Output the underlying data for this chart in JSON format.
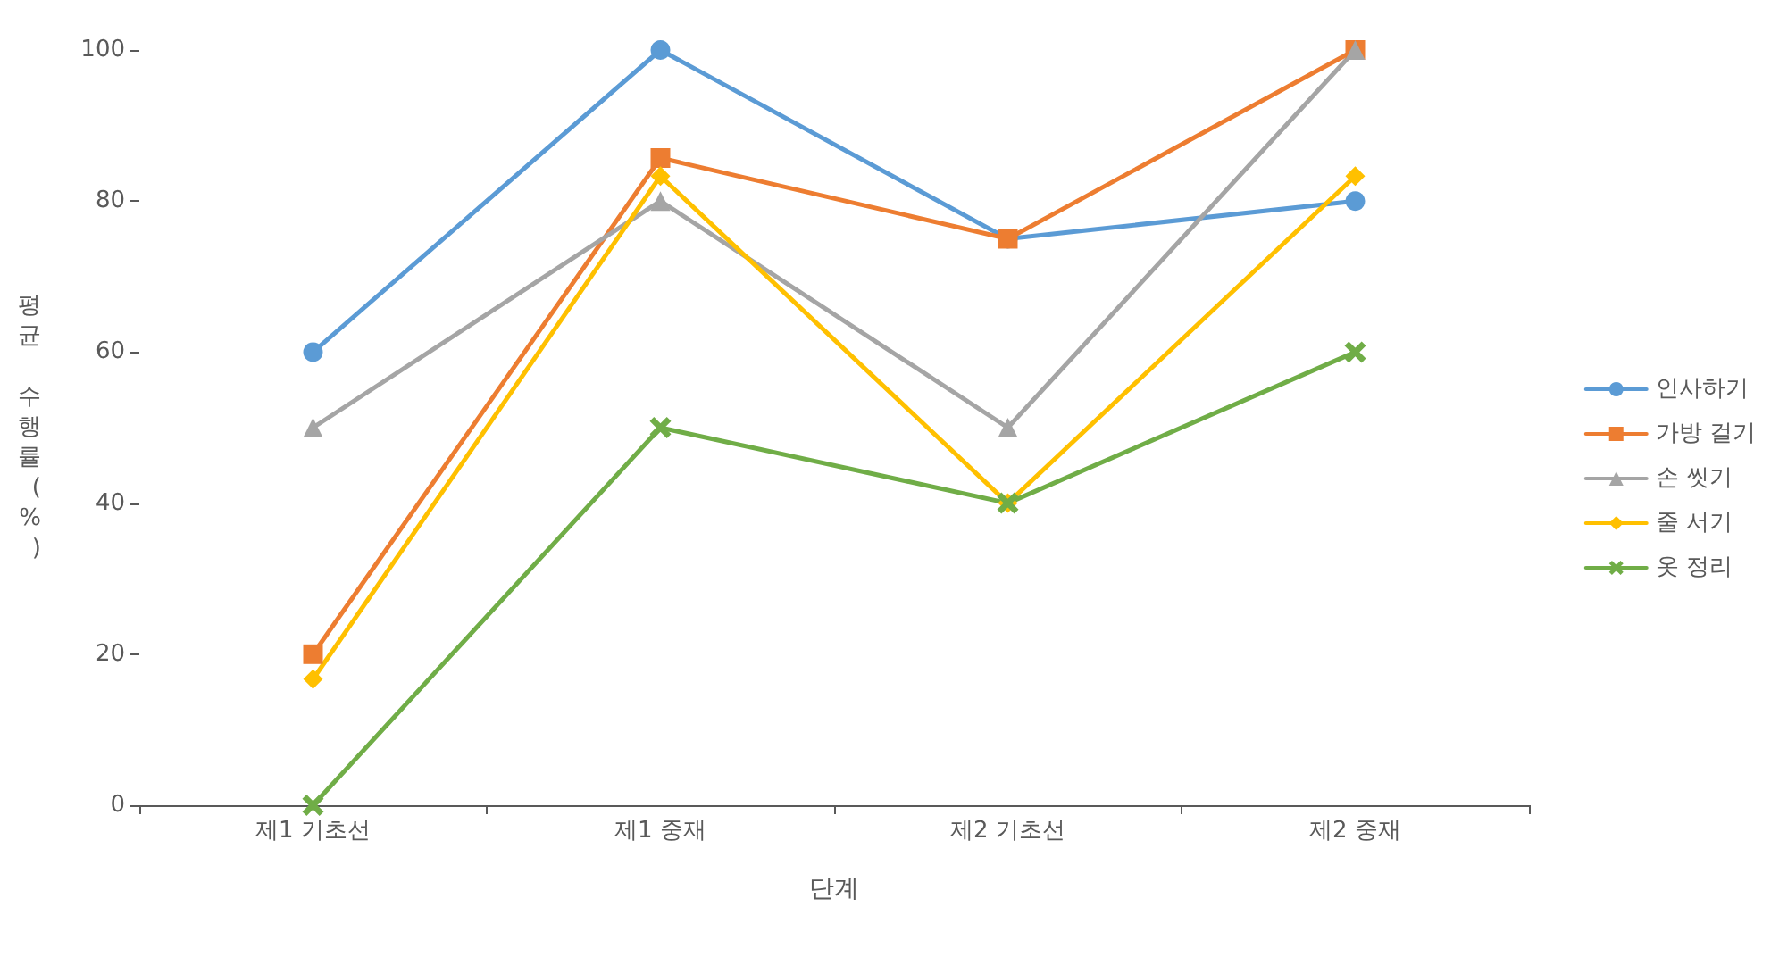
{
  "chart_data": {
    "type": "line",
    "xlabel": "단계",
    "ylabel": "평균 수행률(%)",
    "categories": [
      "제1 기초선",
      "제1 중재",
      "제2 기초선",
      "제2 중재"
    ],
    "series": [
      {
        "name": "인사하기",
        "color": "#5b9bd5",
        "marker": "circle",
        "values": [
          60,
          100,
          75,
          80
        ]
      },
      {
        "name": "가방 걸기",
        "color": "#ed7d31",
        "marker": "square",
        "values": [
          20,
          85.7,
          75,
          100
        ]
      },
      {
        "name": "손 씻기",
        "color": "#a5a5a5",
        "marker": "triangle",
        "values": [
          50,
          80,
          50,
          100
        ]
      },
      {
        "name": "줄 서기",
        "color": "#ffc000",
        "marker": "diamond",
        "values": [
          16.7,
          83.3,
          40,
          83.3
        ]
      },
      {
        "name": "옷 정리",
        "color": "#70ad47",
        "marker": "cross",
        "values": [
          0,
          50,
          40,
          60
        ]
      }
    ],
    "ylim": [
      0,
      100
    ],
    "yticks": [
      0,
      20,
      40,
      60,
      80,
      100
    ],
    "grid": false,
    "legend": "right",
    "line_style": "solid"
  }
}
